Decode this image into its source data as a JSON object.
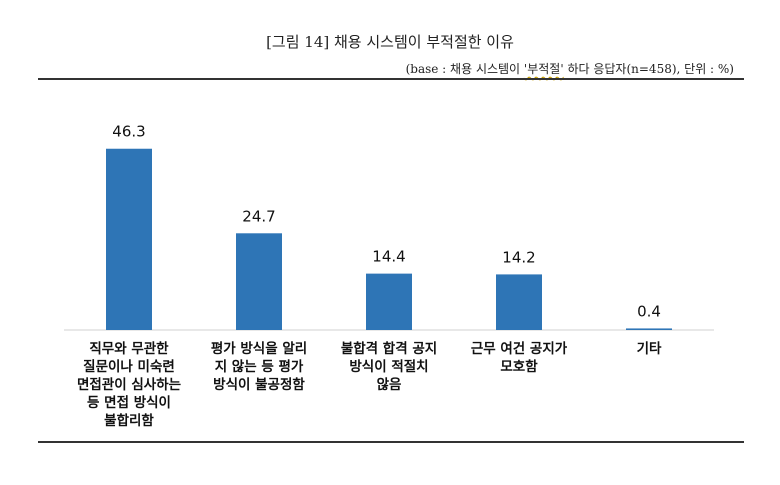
{
  "header": {
    "title": "[그림 14] 채용 시스템이 부적절한 이유",
    "subtitle_pre": "(base : 채용 시스템이 ",
    "subtitle_quoted": "'부적절'",
    "subtitle_post": " 하다 응답자(n=458), 단위 : %)"
  },
  "colors": {
    "bar": "#2e75b6",
    "axis": "#d0d0d0"
  },
  "chart_data": {
    "type": "bar",
    "title": "[그림 14] 채용 시스템이 부적절한 이유",
    "xlabel": "",
    "ylabel": "",
    "ylim": [
      0,
      50
    ],
    "grid": false,
    "categories": [
      "직무와 무관한 질문이나 미숙련 면접관이 심사하는 등 면접 방식이 불합리함",
      "평가 방식을 알리지 않는 등 평가 방식이 불공정함",
      "불합격 합격 공지 방식이 적절치 않음",
      "근무 여건 공지가 모호함",
      "기타"
    ],
    "category_lines": [
      [
        "직무와 무관한",
        "질문이나 미숙련",
        "면접관이 심사하는",
        "등 면접 방식이",
        "불합리함"
      ],
      [
        "평가 방식을 알리",
        "지 않는 등 평가",
        "방식이 불공정함"
      ],
      [
        "불합격 합격 공지",
        "방식이 적절치",
        "않음"
      ],
      [
        "근무 여건 공지가",
        "모호함"
      ],
      [
        "기타"
      ]
    ],
    "values": [
      46.3,
      24.7,
      14.4,
      14.2,
      0.4
    ],
    "value_labels": [
      "46.3",
      "24.7",
      "14.4",
      "14.2",
      "0.4"
    ]
  }
}
